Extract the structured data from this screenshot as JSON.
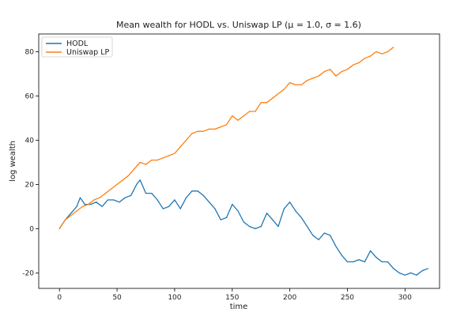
{
  "chart_data": {
    "type": "line",
    "title": "Mean wealth for HODL vs. Uniswap LP (μ = 1.0, σ = 1.6)",
    "xlabel": "time",
    "ylabel": "log wealth",
    "xlim": [
      -18,
      330
    ],
    "ylim": [
      -27,
      88
    ],
    "xticks": [
      0,
      50,
      100,
      150,
      200,
      250,
      300
    ],
    "yticks": [
      -20,
      0,
      20,
      40,
      60,
      80
    ],
    "grid": false,
    "legend_position": "upper-left",
    "series": [
      {
        "name": "HODL",
        "color": "#1f77b4",
        "x": [
          0,
          5,
          10,
          15,
          18,
          22,
          27,
          32,
          37,
          42,
          47,
          52,
          57,
          62,
          67,
          70,
          75,
          80,
          85,
          90,
          95,
          100,
          105,
          110,
          115,
          120,
          125,
          130,
          135,
          140,
          145,
          150,
          155,
          160,
          165,
          170,
          175,
          180,
          185,
          190,
          195,
          200,
          205,
          210,
          215,
          220,
          225,
          230,
          235,
          240,
          245,
          250,
          255,
          260,
          265,
          270,
          275,
          280,
          285,
          290,
          295,
          300,
          305,
          310,
          315,
          320
        ],
        "values": [
          0,
          4,
          7,
          10,
          14,
          11,
          11,
          12,
          10,
          13,
          13,
          12,
          14,
          15,
          20,
          22,
          16,
          16,
          13,
          9,
          10,
          13,
          9,
          14,
          17,
          17,
          15,
          12,
          9,
          4,
          5,
          11,
          8,
          3,
          1,
          0,
          1,
          7,
          4,
          1,
          9,
          12,
          8,
          5,
          1,
          -3,
          -5,
          -2,
          -3,
          -8,
          -12,
          -15,
          -15,
          -14,
          -15,
          -10,
          -13,
          -15,
          -15,
          -18,
          -20,
          -21,
          -20,
          -21,
          -19,
          -18
        ]
      },
      {
        "name": "Uniswap LP",
        "color": "#ff7f0e",
        "x": [
          0,
          5,
          10,
          15,
          20,
          25,
          30,
          35,
          40,
          45,
          50,
          55,
          60,
          65,
          70,
          75,
          80,
          85,
          90,
          95,
          100,
          105,
          110,
          115,
          120,
          125,
          130,
          135,
          140,
          145,
          150,
          155,
          160,
          165,
          170,
          175,
          180,
          185,
          190,
          195,
          200,
          205,
          210,
          215,
          220,
          225,
          230,
          235,
          240,
          245,
          250,
          255,
          260,
          265,
          270,
          275,
          280,
          285,
          290
        ],
        "values": [
          0,
          4,
          6,
          8,
          10,
          11,
          13,
          14,
          16,
          18,
          20,
          22,
          24,
          27,
          30,
          29,
          31,
          31,
          32,
          33,
          34,
          37,
          40,
          43,
          44,
          44,
          45,
          45,
          46,
          47,
          51,
          49,
          51,
          53,
          53,
          57,
          57,
          59,
          61,
          63,
          66,
          65,
          65,
          67,
          68,
          69,
          71,
          72,
          69,
          71,
          72,
          74,
          75,
          77,
          78,
          80,
          79,
          80,
          82
        ]
      }
    ]
  }
}
